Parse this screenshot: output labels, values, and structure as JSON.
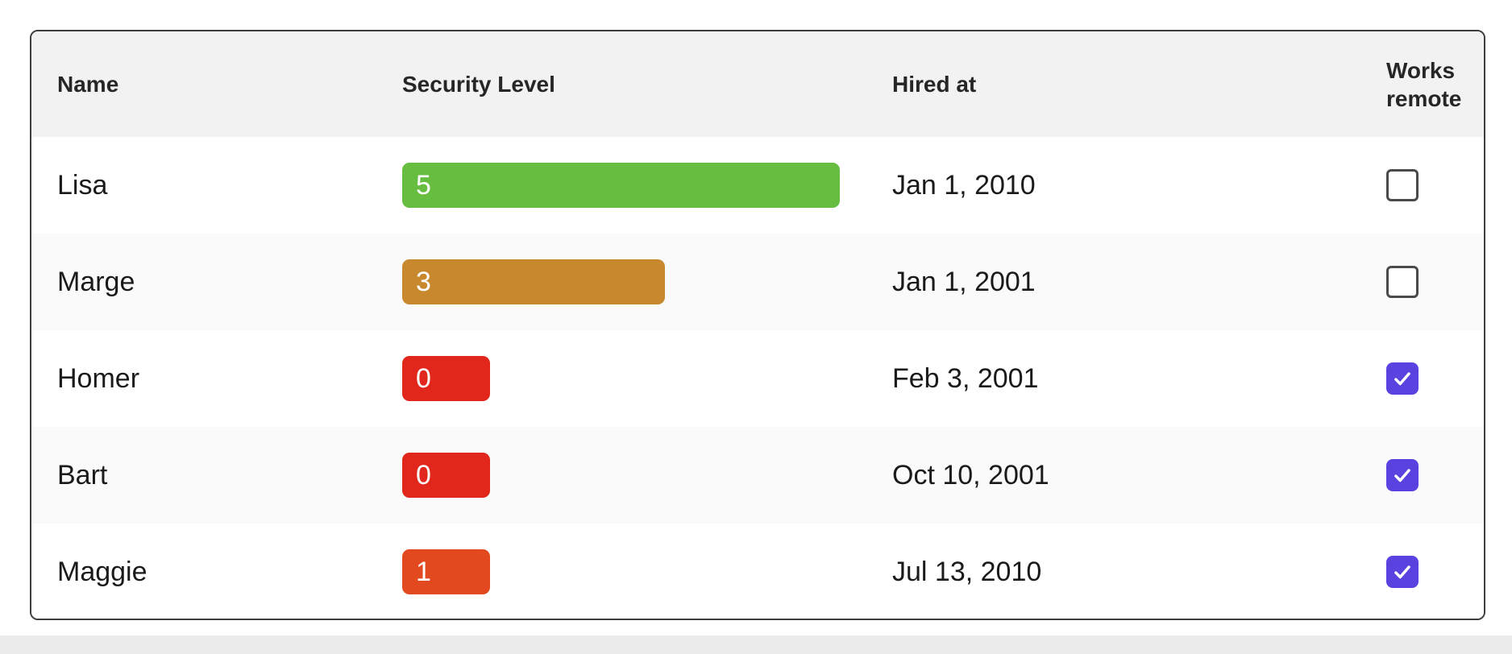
{
  "table": {
    "columns": [
      {
        "label": "Name"
      },
      {
        "label": "Security Level"
      },
      {
        "label": "Hired at"
      },
      {
        "label": "Works remote"
      }
    ],
    "security_level_max": 5,
    "rows": [
      {
        "name": "Lisa",
        "security_level": 5,
        "bar_color": "#66bd3f",
        "hired_at": "Jan 1, 2010",
        "works_remote": false
      },
      {
        "name": "Marge",
        "security_level": 3,
        "bar_color": "#c8892e",
        "hired_at": "Jan 1, 2001",
        "works_remote": false
      },
      {
        "name": "Homer",
        "security_level": 0,
        "bar_color": "#e1261b",
        "hired_at": "Feb 3, 2001",
        "works_remote": true
      },
      {
        "name": "Bart",
        "security_level": 0,
        "bar_color": "#e1261b",
        "hired_at": "Oct 10, 2001",
        "works_remote": true
      },
      {
        "name": "Maggie",
        "security_level": 1,
        "bar_color": "#e2491e",
        "hired_at": "Jul 13, 2010",
        "works_remote": true
      }
    ]
  },
  "colors": {
    "accent_checked": "#5843e0",
    "header_bg": "#f2f2f2",
    "stripe_bg": "#fafafa",
    "table_border": "#3e3e3e"
  }
}
